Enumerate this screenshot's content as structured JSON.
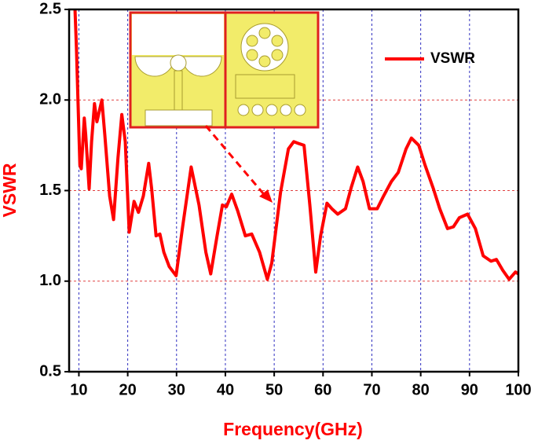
{
  "chart_data": {
    "type": "line",
    "x_label": "Frequency(GHz)",
    "y_label": "VSWR",
    "x": [
      9.2,
      9.5,
      10.2,
      10.5,
      11.1,
      11.4,
      12.1,
      12.6,
      13.2,
      13.7,
      14.7,
      15.3,
      16.3,
      17.1,
      18.0,
      18.8,
      19.5,
      20.3,
      21.3,
      22.2,
      23.2,
      24.3,
      24.9,
      25.8,
      26.6,
      27.4,
      28.5,
      29.9,
      31.2,
      33.0,
      34.6,
      36.0,
      37.0,
      38.3,
      39.4,
      40.2,
      41.3,
      42.5,
      44.1,
      45.4,
      47.0,
      48.6,
      49.5,
      51.3,
      52.9,
      54.0,
      55.0,
      56.1,
      57.3,
      58.5,
      59.5,
      60.8,
      61.8,
      63.0,
      64.6,
      65.8,
      67.1,
      68.2,
      69.5,
      71.1,
      72.4,
      74.0,
      75.4,
      77.0,
      78.1,
      79.6,
      80.9,
      82.6,
      83.9,
      85.5,
      86.7,
      87.9,
      89.6,
      91.2,
      92.8,
      94.4,
      95.5,
      96.8,
      98.1,
      99.4,
      100
    ],
    "series": [
      {
        "name": "VSWR",
        "color": "#ff0000",
        "values": [
          2.5,
          2.29,
          1.64,
          1.62,
          1.9,
          1.81,
          1.51,
          1.77,
          1.98,
          1.88,
          2.0,
          1.81,
          1.47,
          1.34,
          1.68,
          1.92,
          1.77,
          1.27,
          1.44,
          1.38,
          1.47,
          1.65,
          1.51,
          1.25,
          1.26,
          1.16,
          1.08,
          1.03,
          1.29,
          1.63,
          1.42,
          1.16,
          1.04,
          1.25,
          1.42,
          1.41,
          1.48,
          1.39,
          1.25,
          1.26,
          1.16,
          1.01,
          1.1,
          1.49,
          1.73,
          1.77,
          1.76,
          1.75,
          1.42,
          1.05,
          1.25,
          1.43,
          1.4,
          1.37,
          1.4,
          1.52,
          1.63,
          1.55,
          1.4,
          1.4,
          1.47,
          1.55,
          1.6,
          1.73,
          1.79,
          1.75,
          1.64,
          1.51,
          1.4,
          1.29,
          1.3,
          1.35,
          1.37,
          1.29,
          1.14,
          1.11,
          1.12,
          1.06,
          1.01,
          1.05,
          1.04
        ]
      }
    ],
    "xlim": [
      8,
      100
    ],
    "ylim": [
      0.5,
      2.5
    ],
    "xticks": [
      10,
      20,
      30,
      40,
      50,
      60,
      70,
      80,
      90,
      100
    ],
    "yticks": [
      0.5,
      {
        "value": 1,
        "label": "1.0"
      },
      1.5,
      {
        "value": 2,
        "label": "2.0"
      },
      2.5
    ],
    "grid": true,
    "legend": "upper right"
  }
}
